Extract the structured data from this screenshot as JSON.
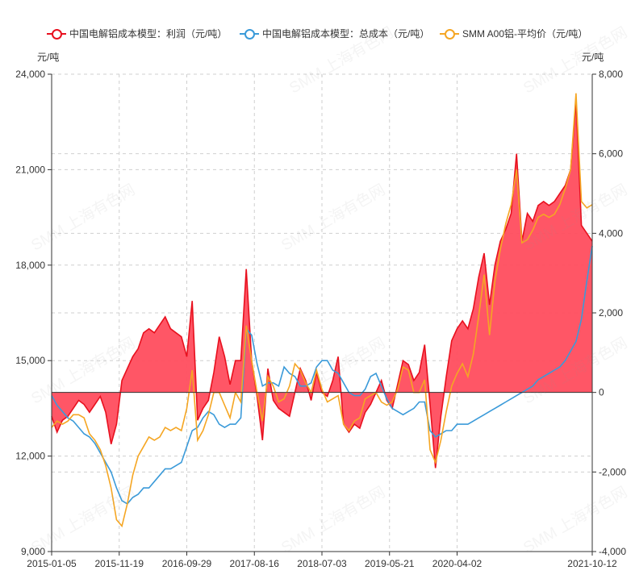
{
  "watermark": "SMM 上海有色网",
  "chart_data": {
    "type": "line",
    "left_unit": "元/吨",
    "right_unit": "元/吨",
    "left_ylim": [
      9000,
      24000
    ],
    "left_ticks": [
      "9,000",
      "12,000",
      "15,000",
      "18,000",
      "21,000",
      "24,000"
    ],
    "left_tick_values": [
      9000,
      12000,
      15000,
      18000,
      21000,
      24000
    ],
    "right_ylim": [
      -4000,
      8000
    ],
    "right_ticks": [
      "-4,000",
      "-2,000",
      "0",
      "2,000",
      "4,000",
      "6,000",
      "8,000"
    ],
    "right_tick_values": [
      -4000,
      -2000,
      0,
      2000,
      4000,
      6000,
      8000
    ],
    "x_ticks": [
      "2015-01-05",
      "2015-11-19",
      "2016-09-29",
      "2017-08-16",
      "2018-07-03",
      "2019-05-21",
      "2020-04-02",
      "2021-10-12"
    ],
    "x_tick_positions": [
      0,
      0.125,
      0.25,
      0.375,
      0.5,
      0.625,
      0.75,
      1.0
    ],
    "grid": true,
    "legend_position": "top",
    "x": [
      0,
      0.01,
      0.02,
      0.03,
      0.04,
      0.05,
      0.06,
      0.07,
      0.08,
      0.09,
      0.1,
      0.11,
      0.12,
      0.13,
      0.14,
      0.15,
      0.16,
      0.17,
      0.18,
      0.19,
      0.2,
      0.21,
      0.22,
      0.23,
      0.24,
      0.25,
      0.26,
      0.27,
      0.28,
      0.29,
      0.3,
      0.31,
      0.32,
      0.33,
      0.34,
      0.35,
      0.36,
      0.37,
      0.38,
      0.39,
      0.4,
      0.41,
      0.42,
      0.43,
      0.44,
      0.45,
      0.46,
      0.47,
      0.48,
      0.49,
      0.5,
      0.51,
      0.52,
      0.53,
      0.54,
      0.55,
      0.56,
      0.57,
      0.58,
      0.59,
      0.6,
      0.61,
      0.62,
      0.63,
      0.64,
      0.65,
      0.66,
      0.67,
      0.68,
      0.69,
      0.7,
      0.71,
      0.72,
      0.73,
      0.74,
      0.75,
      0.76,
      0.77,
      0.78,
      0.79,
      0.8,
      0.81,
      0.82,
      0.83,
      0.84,
      0.85,
      0.86,
      0.87,
      0.88,
      0.89,
      0.9,
      0.91,
      0.92,
      0.93,
      0.94,
      0.95,
      0.96,
      0.97,
      0.98,
      0.99,
      1.0
    ],
    "series": [
      {
        "name": "中国电解铝成本模型：利润（元/吨）",
        "axis": "right",
        "color": "#e8101e",
        "fill": "#ff4d5e",
        "values": [
          -600,
          -1000,
          -700,
          -600,
          -400,
          -200,
          -300,
          -500,
          -300,
          -100,
          -500,
          -1300,
          -800,
          300,
          600,
          900,
          1100,
          1500,
          1600,
          1500,
          1700,
          1900,
          1600,
          1500,
          1400,
          900,
          2300,
          -700,
          -400,
          -200,
          500,
          1400,
          900,
          200,
          800,
          800,
          3100,
          800,
          -100,
          -1200,
          600,
          -200,
          -400,
          -500,
          -600,
          0,
          600,
          300,
          -200,
          500,
          0,
          -100,
          300,
          900,
          -800,
          -1000,
          -800,
          -900,
          -500,
          -300,
          0,
          300,
          -200,
          -400,
          200,
          800,
          700,
          300,
          500,
          1200,
          -300,
          -1900,
          -600,
          400,
          1300,
          1600,
          1800,
          1600,
          2100,
          2900,
          3500,
          2200,
          3200,
          3800,
          4100,
          4500,
          6000,
          3800,
          4500,
          4300,
          4700,
          4800,
          4700,
          4800,
          5000,
          5200,
          5600,
          7300,
          4200,
          4000,
          3800
        ]
      },
      {
        "name": "中国电解铝成本模型：总成本（元/吨）",
        "axis": "left",
        "color": "#3a9ad9",
        "values": [
          13900,
          13600,
          13400,
          13200,
          13100,
          12900,
          12700,
          12600,
          12400,
          12100,
          11800,
          11500,
          11000,
          10600,
          10500,
          10700,
          10800,
          11000,
          11000,
          11200,
          11400,
          11600,
          11600,
          11700,
          11800,
          12300,
          12800,
          12900,
          13200,
          13400,
          13300,
          13000,
          12900,
          13000,
          13000,
          13200,
          16000,
          15800,
          14900,
          14200,
          14300,
          14300,
          14200,
          14800,
          14600,
          14500,
          14200,
          14200,
          14300,
          14800,
          15000,
          15000,
          14700,
          14600,
          14300,
          14000,
          13900,
          13900,
          14100,
          14500,
          14600,
          14200,
          13800,
          13500,
          13400,
          13300,
          13400,
          13500,
          13700,
          13700,
          12800,
          12600,
          12700,
          12800,
          12800,
          13000,
          13000,
          13000,
          13100,
          13200,
          13300,
          13400,
          13500,
          13600,
          13700,
          13800,
          13900,
          14000,
          14100,
          14200,
          14400,
          14500,
          14600,
          14700,
          14800,
          15000,
          15300,
          15600,
          16300,
          17500,
          18600
        ]
      },
      {
        "name": "SMM A00铝-平均价（元/吨）",
        "axis": "left",
        "color": "#f5a623",
        "values": [
          12900,
          13100,
          13000,
          13100,
          13300,
          13300,
          13200,
          12700,
          12500,
          12200,
          11700,
          11000,
          10000,
          9800,
          10500,
          11400,
          12000,
          12300,
          12600,
          12500,
          12600,
          12900,
          12800,
          12900,
          12800,
          13500,
          14700,
          12500,
          12800,
          13300,
          14000,
          14000,
          13600,
          13200,
          14000,
          13700,
          16100,
          15000,
          14000,
          13100,
          14500,
          14200,
          13700,
          13800,
          14200,
          14900,
          14700,
          14300,
          14000,
          14700,
          14100,
          13700,
          13800,
          13900,
          13000,
          12800,
          13100,
          13200,
          13800,
          13900,
          14000,
          13700,
          13600,
          13700,
          14100,
          14800,
          14700,
          14000,
          14000,
          14400,
          12200,
          11800,
          12500,
          13400,
          14200,
          14600,
          14900,
          14500,
          15200,
          16400,
          17700,
          15800,
          17500,
          18500,
          19300,
          19900,
          21000,
          18700,
          18800,
          19100,
          19500,
          19600,
          19500,
          19600,
          19900,
          20400,
          21000,
          23400,
          20000,
          19800,
          19900
        ]
      }
    ]
  }
}
